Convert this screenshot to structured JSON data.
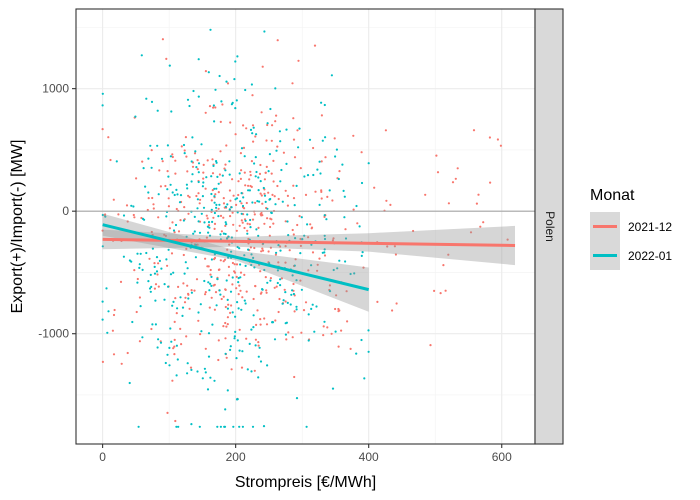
{
  "chart_data": {
    "type": "scatter",
    "facet_label": "Polen",
    "xlabel": "Strompreis [€/MWh]",
    "ylabel": "Export(+)/Import(-) [MW]",
    "xlim": [
      -40,
      650
    ],
    "ylim": [
      -1900,
      1650
    ],
    "x_ticks": [
      0,
      200,
      400,
      600
    ],
    "x_tick_labels": [
      "0",
      "200",
      "400",
      "600"
    ],
    "y_ticks": [
      -1000,
      0,
      1000
    ],
    "y_tick_labels": [
      "-1000",
      "0",
      "1000"
    ],
    "hline": 0,
    "legend": {
      "title": "Monat",
      "position": "right",
      "entries": [
        "2021-12",
        "2022-01"
      ]
    },
    "series": [
      {
        "name": "2021-12",
        "color": "#F8766D",
        "x_range": [
          0,
          620
        ],
        "y_mean": -200,
        "y_spread": 550,
        "n_points": 520,
        "seed": 12,
        "trend": {
          "x": [
            0,
            620
          ],
          "y": [
            -230,
            -280
          ]
        },
        "ci_band": {
          "x": [
            0,
            200,
            400,
            620
          ],
          "lower": [
            -310,
            -290,
            -330,
            -440
          ],
          "upper": [
            -150,
            -210,
            -180,
            -120
          ]
        }
      },
      {
        "name": "2022-01",
        "color": "#00BFC4",
        "x_range": [
          0,
          400
        ],
        "y_mean": -300,
        "y_spread": 700,
        "n_points": 480,
        "seed": 7,
        "trend": {
          "x": [
            0,
            400
          ],
          "y": [
            -110,
            -640
          ]
        },
        "ci_band": {
          "x": [
            0,
            200,
            400
          ],
          "lower": [
            -200,
            -400,
            -820
          ],
          "upper": [
            -20,
            -320,
            -460
          ]
        }
      }
    ]
  }
}
